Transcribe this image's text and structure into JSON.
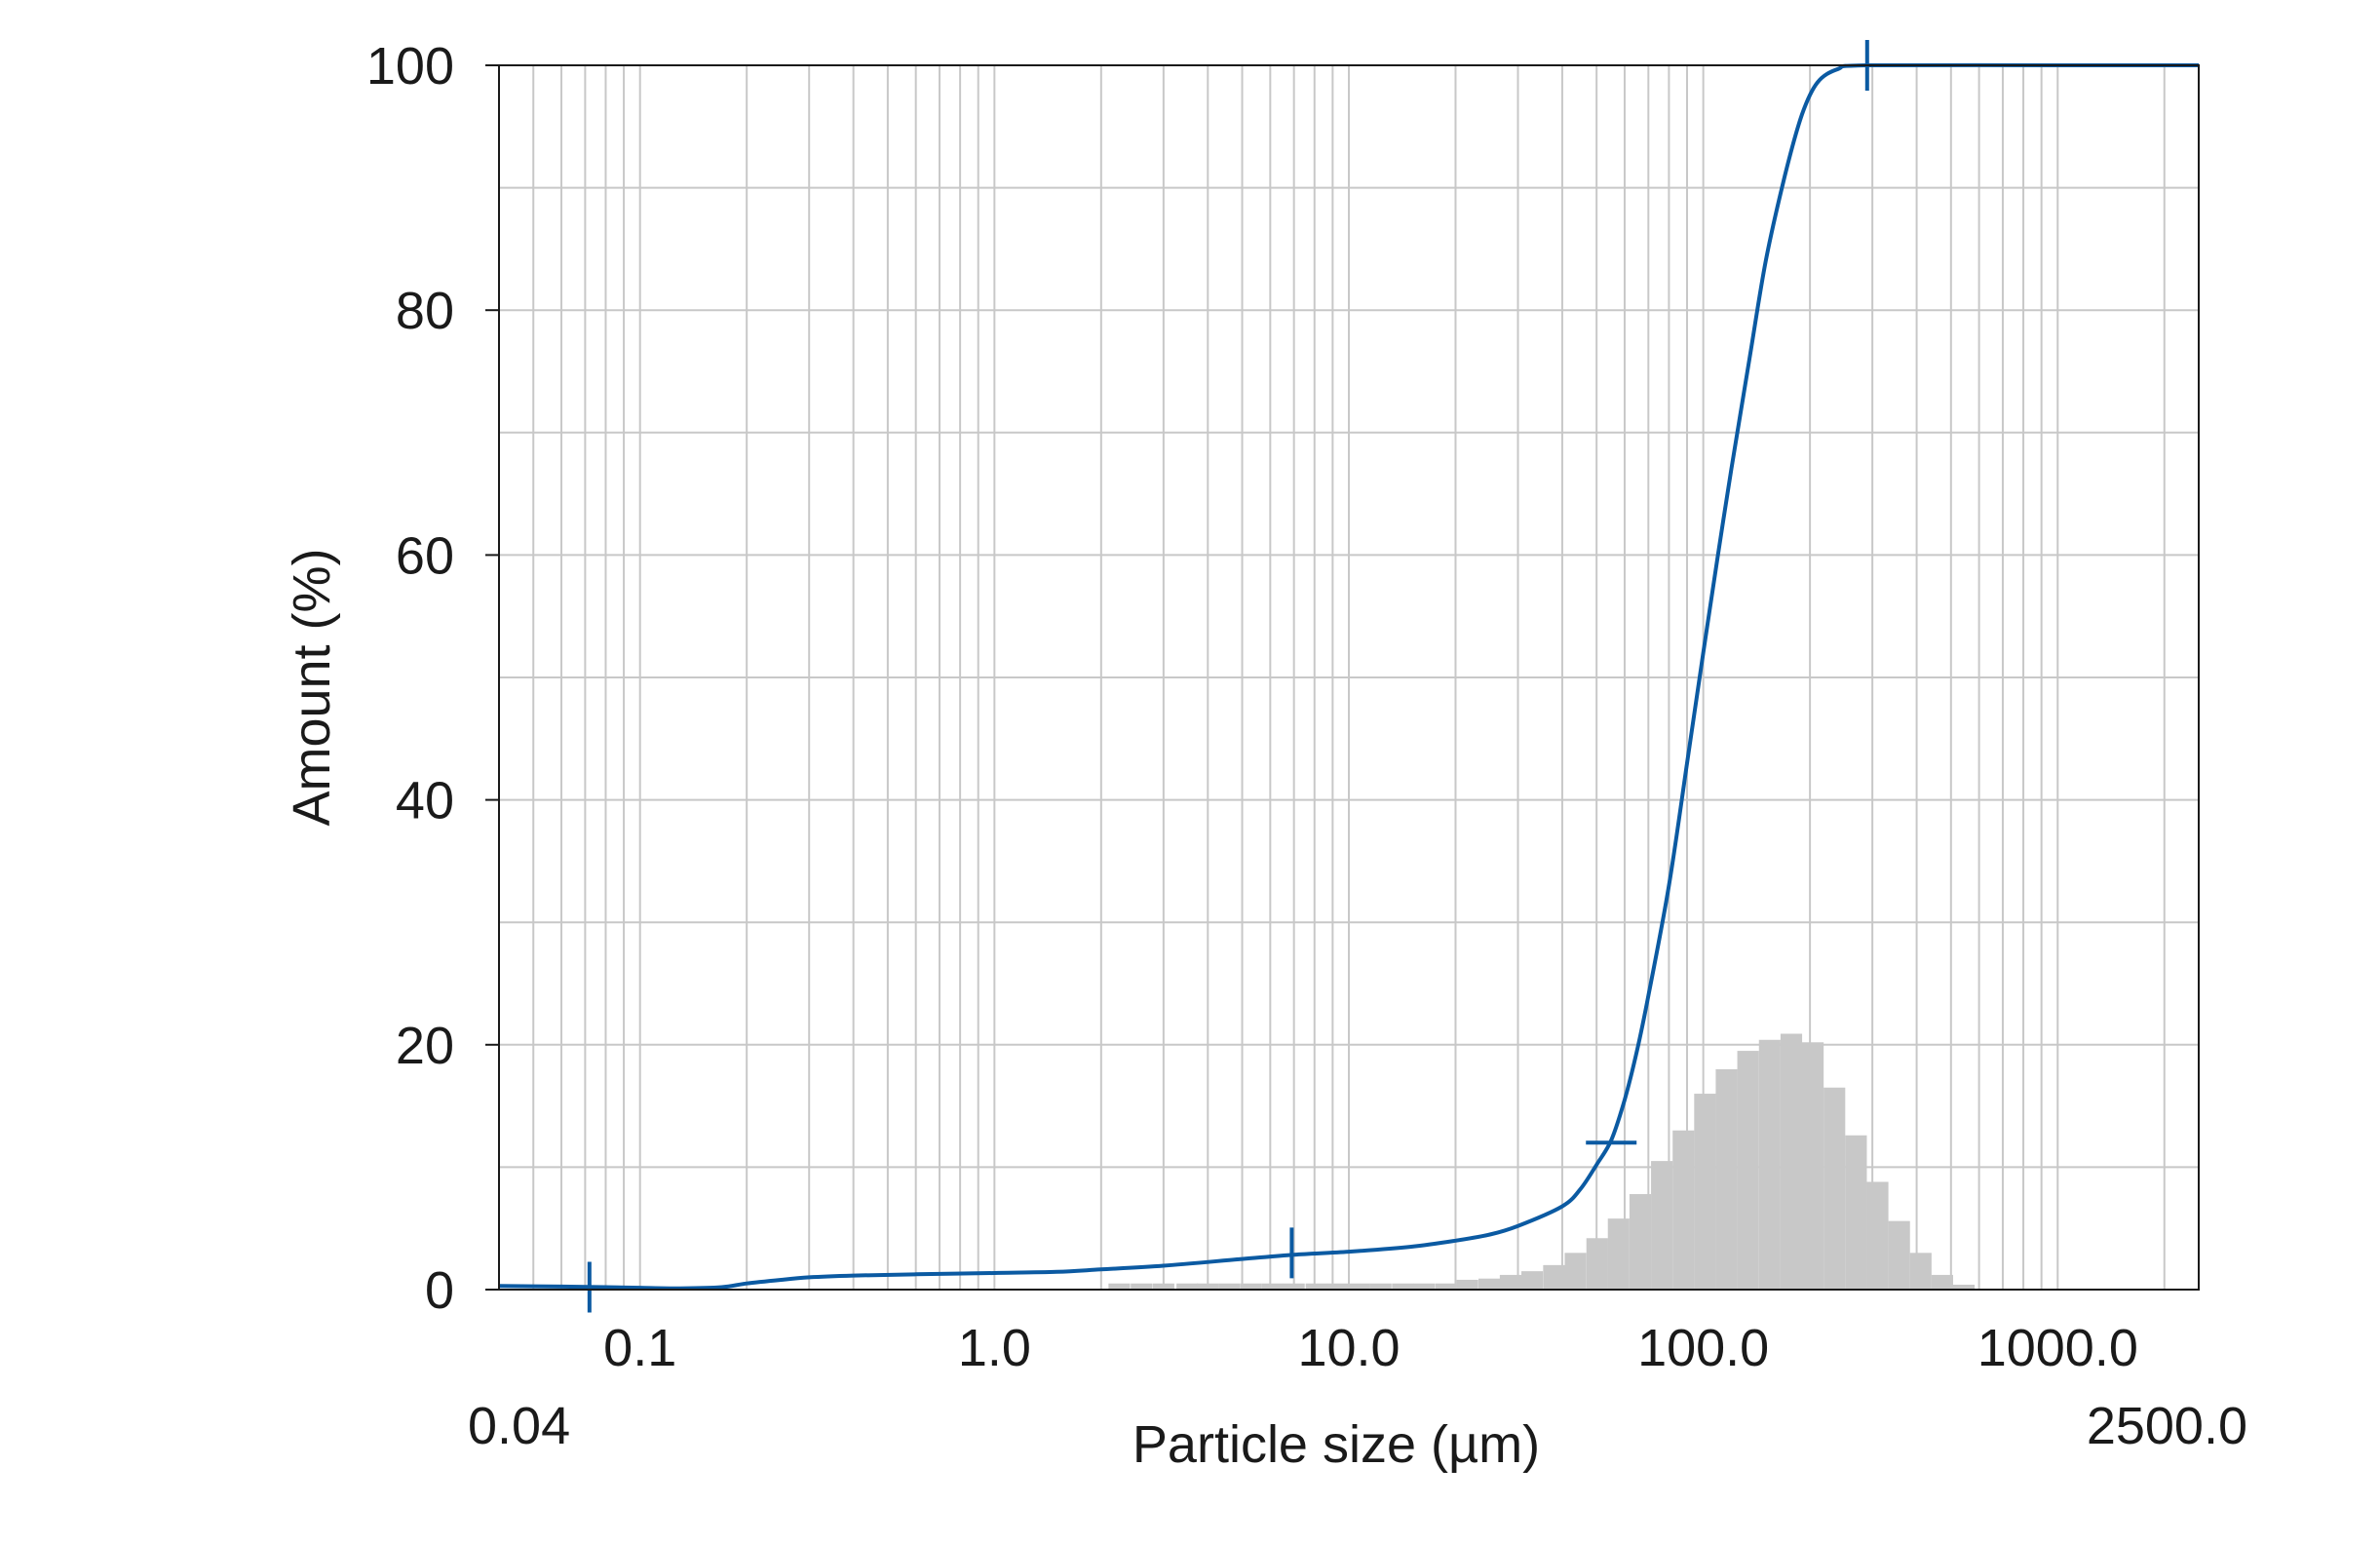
{
  "chart_data": {
    "type": "line",
    "xlabel": "Particle size (µm)",
    "ylabel": "Amount (%)",
    "x_scale": "log",
    "xlim": [
      0.04,
      2500.0
    ],
    "ylim": [
      0,
      100
    ],
    "grid": true,
    "x_ticks": [
      {
        "value": 0.1,
        "label": "0.1"
      },
      {
        "value": 1.0,
        "label": "1.0"
      },
      {
        "value": 10.0,
        "label": "10.0"
      },
      {
        "value": 100.0,
        "label": "100.0"
      },
      {
        "value": 1000.0,
        "label": "1000.0"
      }
    ],
    "x_end_labels": [
      {
        "value": 0.04,
        "label": "0.04"
      },
      {
        "value": 2500.0,
        "label": "2500.0"
      }
    ],
    "y_ticks": [
      {
        "value": 0,
        "label": "0"
      },
      {
        "value": 20,
        "label": "20"
      },
      {
        "value": 40,
        "label": "40"
      },
      {
        "value": 60,
        "label": "60"
      },
      {
        "value": 80,
        "label": "80"
      },
      {
        "value": 100,
        "label": "100"
      }
    ],
    "colors": {
      "curve": "#0b5aa2",
      "histogram": "#c8c8c8",
      "grid": "#c8c8c8",
      "frame": "#1a1a1a"
    },
    "series": [
      {
        "type": "line",
        "points": [
          [
            0.04,
            0.3
          ],
          [
            0.06,
            0.25
          ],
          [
            0.08,
            0.2
          ],
          [
            0.1,
            0.15
          ],
          [
            0.13,
            0.1
          ],
          [
            0.17,
            0.2
          ],
          [
            0.2,
            0.5
          ],
          [
            0.25,
            0.8
          ],
          [
            0.3,
            1.0
          ],
          [
            0.4,
            1.15
          ],
          [
            0.6,
            1.25
          ],
          [
            1.0,
            1.35
          ],
          [
            1.5,
            1.45
          ],
          [
            2.0,
            1.65
          ],
          [
            3.0,
            1.95
          ],
          [
            5.0,
            2.5
          ],
          [
            7.0,
            2.85
          ],
          [
            10.0,
            3.1
          ],
          [
            15.0,
            3.5
          ],
          [
            20.0,
            4.0
          ],
          [
            25.0,
            4.5
          ],
          [
            30.0,
            5.2
          ],
          [
            40.0,
            6.8
          ],
          [
            45.0,
            8.2
          ],
          [
            50.0,
            10.2
          ],
          [
            55.0,
            12.2
          ],
          [
            60.0,
            15.5
          ],
          [
            65.0,
            19.5
          ],
          [
            70.0,
            24.0
          ],
          [
            80.0,
            33.0
          ],
          [
            90.0,
            43.0
          ],
          [
            100.0,
            52.0
          ],
          [
            110.0,
            60.0
          ],
          [
            120.0,
            67.0
          ],
          [
            135.0,
            76.0
          ],
          [
            150.0,
            84.0
          ],
          [
            170.0,
            91.0
          ],
          [
            190.0,
            96.0
          ],
          [
            210.0,
            98.6
          ],
          [
            240.0,
            99.7
          ],
          [
            290.0,
            100.0
          ],
          [
            1000.0,
            100.0
          ],
          [
            2500.0,
            100.0
          ]
        ]
      },
      {
        "type": "histogram",
        "bins": [
          [
            2.25,
            0.5
          ],
          [
            2.6,
            0.5
          ],
          [
            3.0,
            0.5
          ],
          [
            3.5,
            0.5
          ],
          [
            4.0,
            0.5
          ],
          [
            4.6,
            0.5
          ],
          [
            5.3,
            0.5
          ],
          [
            6.1,
            0.5
          ],
          [
            7.0,
            0.5
          ],
          [
            8.1,
            0.5
          ],
          [
            9.3,
            0.5
          ],
          [
            10.7,
            0.5
          ],
          [
            12.3,
            0.5
          ],
          [
            14.2,
            0.5
          ],
          [
            16.3,
            0.5
          ],
          [
            18.8,
            0.5
          ],
          [
            21.6,
            0.8
          ],
          [
            24.9,
            0.9
          ],
          [
            28.6,
            1.2
          ],
          [
            32.9,
            1.5
          ],
          [
            37.9,
            2.0
          ],
          [
            43.6,
            3.0
          ],
          [
            50.2,
            4.2
          ],
          [
            57.7,
            5.8
          ],
          [
            66.4,
            7.8
          ],
          [
            76.4,
            10.5
          ],
          [
            87.9,
            13.0
          ],
          [
            101.1,
            16.0
          ],
          [
            116.3,
            18.0
          ],
          [
            133.8,
            19.5
          ],
          [
            154.0,
            20.4
          ],
          [
            177.2,
            20.9
          ],
          [
            203.8,
            20.2
          ],
          [
            234.5,
            16.5
          ],
          [
            269.8,
            12.6
          ],
          [
            310.4,
            8.8
          ],
          [
            357.1,
            5.6
          ],
          [
            410.8,
            3.0
          ],
          [
            472.6,
            1.2
          ],
          [
            543.7,
            0.4
          ]
        ],
        "bin_width_log10": 0.0609
      }
    ],
    "markers": [
      {
        "x": 0.072,
        "y": 0.2,
        "orientation": "vertical"
      },
      {
        "x": 6.9,
        "y": 3.0,
        "orientation": "vertical"
      },
      {
        "x": 55.0,
        "y": 12.0,
        "orientation": "horizontal"
      },
      {
        "x": 290.0,
        "y": 100.0,
        "orientation": "vertical"
      }
    ]
  }
}
